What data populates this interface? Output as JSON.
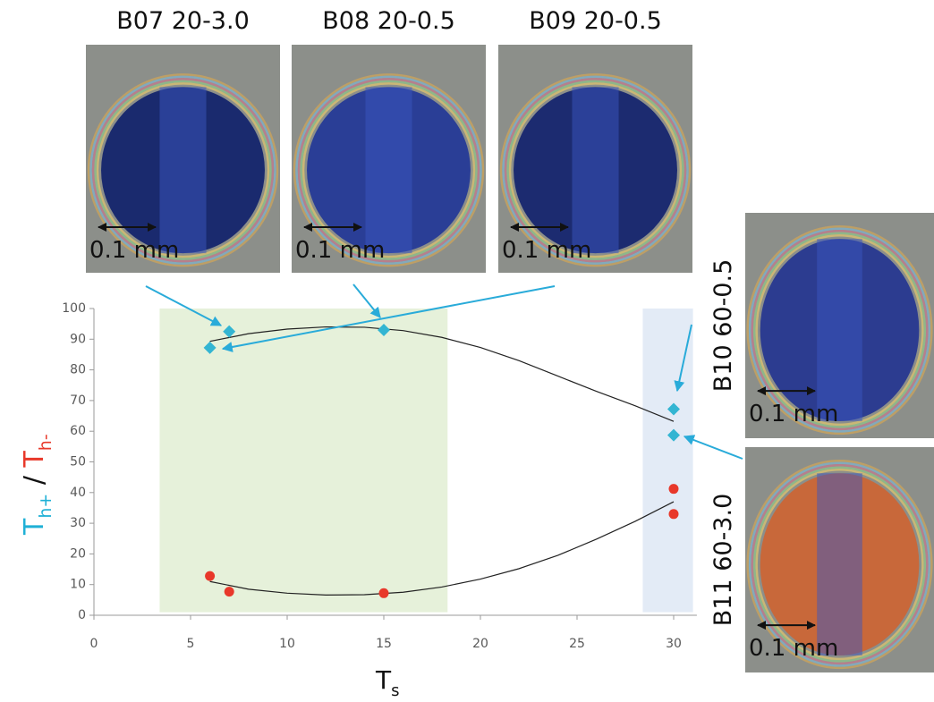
{
  "chart_data": {
    "type": "scatter",
    "x_label": {
      "text": "T",
      "sub": "s"
    },
    "y_label": [
      {
        "text": "T",
        "sub": "h+",
        "color": "#1fb0d6"
      },
      {
        "text": " / ",
        "color": "#111111"
      },
      {
        "text": "T",
        "sub": "h-",
        "color": "#e8382a"
      }
    ],
    "xlim": [
      0,
      31.2
    ],
    "xticks": [
      0,
      5,
      10,
      15,
      20,
      25,
      30
    ],
    "ylim": [
      0,
      100
    ],
    "yticks": [
      0,
      10,
      20,
      30,
      40,
      50,
      60,
      70,
      80,
      90,
      100
    ],
    "regions": [
      {
        "x": [
          3.4,
          18.3
        ],
        "y": [
          1,
          100
        ],
        "color": "#e6f1da"
      },
      {
        "x": [
          28.4,
          31
        ],
        "y": [
          1,
          100
        ],
        "color": "#e3ebf6"
      }
    ],
    "series": [
      {
        "marker": "diamond",
        "color": "#33b5d2",
        "x": [
          6,
          7,
          15,
          30,
          30
        ],
        "values": [
          87.2,
          92.5,
          93,
          67.2,
          58.7
        ]
      },
      {
        "marker": "circle",
        "color": "#e8382a",
        "x": [
          6,
          7,
          15,
          30,
          30
        ],
        "values": [
          12.8,
          7.7,
          7.2,
          41.2,
          33
        ]
      }
    ],
    "fits": [
      {
        "color": "#222222",
        "x": [
          6,
          8,
          10,
          12,
          14,
          16,
          18,
          20,
          22,
          24,
          26,
          28,
          30
        ],
        "values": [
          89.3,
          91.8,
          93.3,
          94,
          93.9,
          92.8,
          90.6,
          87.3,
          83,
          78,
          73,
          68.3,
          63.2
        ]
      },
      {
        "color": "#222222",
        "x": [
          6,
          8,
          10,
          12,
          14,
          16,
          18,
          20,
          22,
          24,
          26,
          28,
          30
        ],
        "values": [
          11,
          8.5,
          7.2,
          6.6,
          6.7,
          7.5,
          9.2,
          11.8,
          15.2,
          19.5,
          24.8,
          30.6,
          37
        ]
      }
    ]
  },
  "images": [
    {
      "label": "B07 20-3.0",
      "scale": "0.1 mm",
      "fill": "#1a2a6e"
    },
    {
      "label": "B08 20-0.5",
      "scale": "0.1 mm",
      "fill": "#2a3e96"
    },
    {
      "label": "B09 20-0.5",
      "scale": "0.1 mm",
      "fill": "#1c2b70"
    },
    {
      "label": "B10 60-0.5",
      "scale": "0.1 mm",
      "fill": "#2c3c90"
    },
    {
      "label": "B11 60-3.0",
      "scale": "0.1 mm",
      "fill": "#c8683a"
    }
  ]
}
